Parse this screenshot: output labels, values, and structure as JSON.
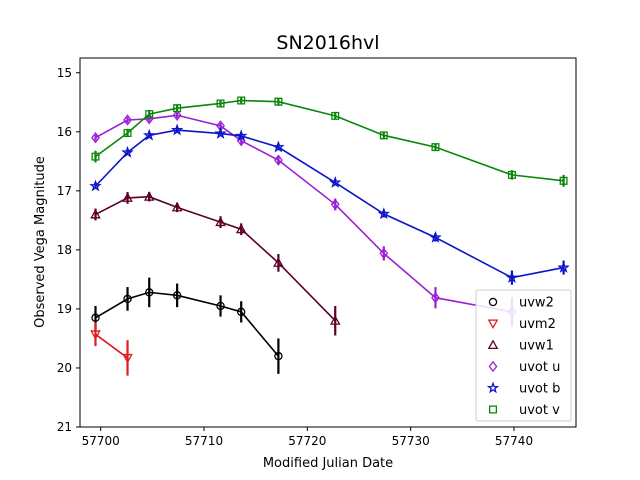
{
  "chart_data": {
    "type": "line",
    "title": "SN2016hvl",
    "xlabel": "Modified Julian Date",
    "ylabel": "Observed Vega Magnitude",
    "xlim": [
      57698,
      57746
    ],
    "ylim": [
      21,
      14.75
    ],
    "y_inverted": true,
    "xticks": [
      57700,
      57710,
      57720,
      57730,
      57740
    ],
    "yticks": [
      15,
      16,
      17,
      18,
      19,
      20,
      21
    ],
    "grid": false,
    "legend_position": "lower-right",
    "series": [
      {
        "name": "uvw2",
        "color": "#000000",
        "marker": "circle",
        "x": [
          57699.5,
          57702.6,
          57704.7,
          57707.4,
          57711.6,
          57713.6,
          57717.2
        ],
        "y": [
          19.15,
          18.83,
          18.72,
          18.77,
          18.95,
          19.05,
          19.8
        ],
        "err": [
          0.2,
          0.2,
          0.25,
          0.2,
          0.18,
          0.18,
          0.3
        ]
      },
      {
        "name": "uvm2",
        "color": "#e31a1c",
        "marker": "triangle-down",
        "x": [
          57699.5,
          57702.6
        ],
        "y": [
          19.43,
          19.83
        ],
        "err": [
          0.2,
          0.3
        ]
      },
      {
        "name": "uvw1",
        "color": "#5c0029",
        "marker": "triangle-up",
        "x": [
          57699.5,
          57702.6,
          57704.7,
          57707.4,
          57711.6,
          57713.6,
          57717.2,
          57722.7
        ],
        "y": [
          17.4,
          17.12,
          17.1,
          17.28,
          17.53,
          17.65,
          18.22,
          19.2
        ],
        "err": [
          0.1,
          0.1,
          0.08,
          0.08,
          0.1,
          0.1,
          0.15,
          0.25
        ]
      },
      {
        "name": "uvot u",
        "color": "#9b1fd4",
        "marker": "diamond",
        "x": [
          57699.5,
          57702.6,
          57704.7,
          57707.4,
          57711.6,
          57713.6,
          57717.2,
          57722.7,
          57727.4,
          57732.4,
          57739.8
        ],
        "y": [
          16.1,
          15.8,
          15.78,
          15.72,
          15.9,
          16.15,
          16.48,
          17.23,
          18.06,
          18.81,
          19.05
        ],
        "err": [
          0.05,
          0.05,
          0.05,
          0.05,
          0.05,
          0.06,
          0.06,
          0.1,
          0.12,
          0.18,
          0.25
        ]
      },
      {
        "name": "uvot b",
        "color": "#0a14c8",
        "marker": "star",
        "x": [
          57699.5,
          57702.6,
          57704.7,
          57707.4,
          57711.6,
          57713.6,
          57717.2,
          57722.7,
          57727.4,
          57732.4,
          57739.8,
          57744.8
        ],
        "y": [
          16.92,
          16.35,
          16.06,
          15.97,
          16.03,
          16.07,
          16.26,
          16.86,
          17.39,
          17.79,
          18.47,
          18.3
        ],
        "err": [
          0.05,
          0.04,
          0.04,
          0.04,
          0.04,
          0.04,
          0.05,
          0.05,
          0.06,
          0.07,
          0.12,
          0.12
        ]
      },
      {
        "name": "uvot v",
        "color": "#0a870a",
        "marker": "square",
        "x": [
          57699.5,
          57702.6,
          57704.7,
          57707.4,
          57711.6,
          57713.6,
          57717.2,
          57722.7,
          57727.4,
          57732.4,
          57739.8,
          57744.8
        ],
        "y": [
          16.42,
          16.02,
          15.7,
          15.6,
          15.52,
          15.47,
          15.49,
          15.73,
          16.06,
          16.26,
          16.73,
          16.83
        ],
        "err": [
          0.1,
          0.07,
          0.07,
          0.06,
          0.05,
          0.05,
          0.05,
          0.05,
          0.06,
          0.06,
          0.08,
          0.1
        ]
      }
    ]
  }
}
